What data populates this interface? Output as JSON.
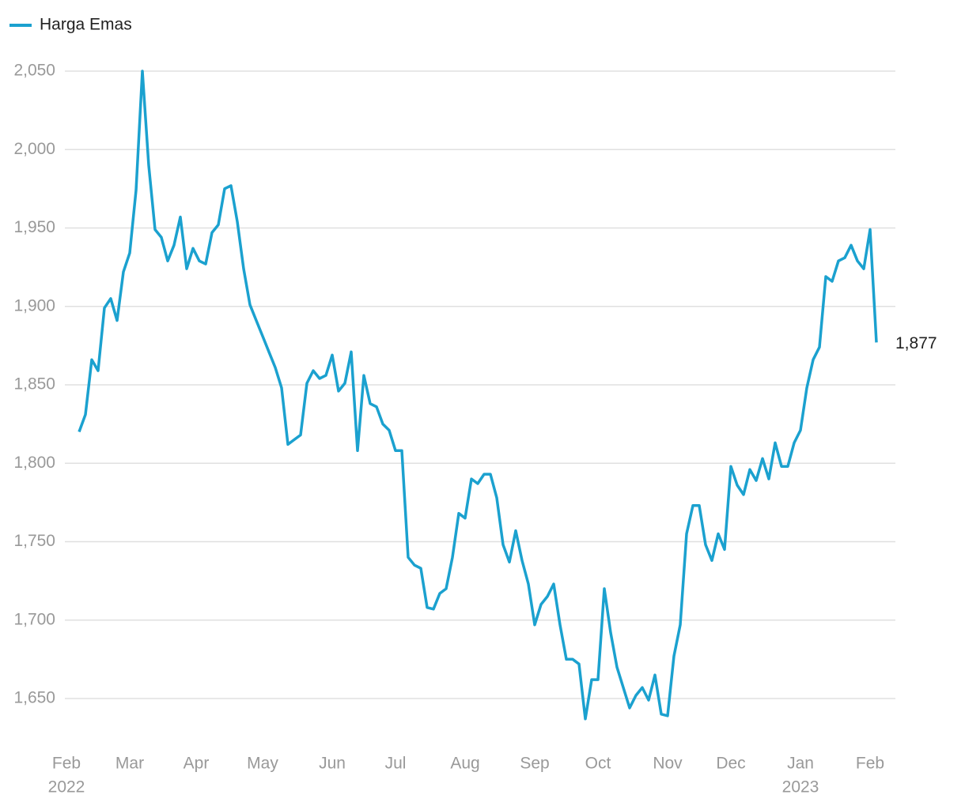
{
  "chart_data": {
    "type": "line",
    "series": [
      {
        "name": "Harga Emas",
        "color": "#1ba1cf",
        "values": [
          1820,
          1831,
          1866,
          1859,
          1899,
          1905,
          1891,
          1922,
          1934,
          1974,
          2050,
          1990,
          1949,
          1944,
          1929,
          1939,
          1957,
          1924,
          1937,
          1929,
          1927,
          1947,
          1952,
          1975,
          1977,
          1954,
          1924,
          1901,
          1891,
          1881,
          1871,
          1861,
          1848,
          1812,
          1815,
          1818,
          1851,
          1859,
          1854,
          1856,
          1869,
          1846,
          1851,
          1871,
          1808,
          1856,
          1838,
          1836,
          1825,
          1821,
          1808,
          1808,
          1740,
          1735,
          1733,
          1708,
          1707,
          1717,
          1720,
          1740,
          1768,
          1765,
          1790,
          1787,
          1793,
          1793,
          1778,
          1748,
          1737,
          1757,
          1738,
          1723,
          1697,
          1710,
          1715,
          1723,
          1697,
          1675,
          1675,
          1672,
          1637,
          1662,
          1662,
          1720,
          1692,
          1670,
          1657,
          1644,
          1652,
          1657,
          1649,
          1665,
          1640,
          1639,
          1677,
          1697,
          1755,
          1773,
          1773,
          1748,
          1738,
          1755,
          1745,
          1798,
          1786,
          1780,
          1796,
          1789,
          1803,
          1790,
          1813,
          1798,
          1798,
          1813,
          1821,
          1848,
          1866,
          1874,
          1919,
          1916,
          1929,
          1931,
          1939,
          1929,
          1924,
          1949,
          1877
        ]
      }
    ],
    "annotations": [
      {
        "index": 126,
        "label": "1,877"
      }
    ],
    "xlim": [
      -2.25,
      129
    ],
    "xticks": [
      {
        "value": -2,
        "label": "Feb"
      },
      {
        "value": 8,
        "label": "Mar"
      },
      {
        "value": 18.5,
        "label": "Apr"
      },
      {
        "value": 29,
        "label": "May"
      },
      {
        "value": 40,
        "label": "Jun"
      },
      {
        "value": 50,
        "label": "Jul"
      },
      {
        "value": 61,
        "label": "Aug"
      },
      {
        "value": 72,
        "label": "Sep"
      },
      {
        "value": 82,
        "label": "Oct"
      },
      {
        "value": 93,
        "label": "Nov"
      },
      {
        "value": 103,
        "label": "Dec"
      },
      {
        "value": 114,
        "label": "Jan"
      },
      {
        "value": 125,
        "label": "Feb"
      }
    ],
    "year_labels": [
      {
        "value": -2,
        "label": "2022"
      },
      {
        "value": 114,
        "label": "2023"
      }
    ],
    "ylim": [
      1619,
      2065
    ],
    "yticks": [
      {
        "value": 1650,
        "label": "1,650"
      },
      {
        "value": 1700,
        "label": "1,700"
      },
      {
        "value": 1750,
        "label": "1,750"
      },
      {
        "value": 1800,
        "label": "1,800"
      },
      {
        "value": 1850,
        "label": "1,850"
      },
      {
        "value": 1900,
        "label": "1,900"
      },
      {
        "value": 1950,
        "label": "1,950"
      },
      {
        "value": 2000,
        "label": "2,000"
      },
      {
        "value": 2050,
        "label": "2,050"
      }
    ],
    "grid": true
  }
}
